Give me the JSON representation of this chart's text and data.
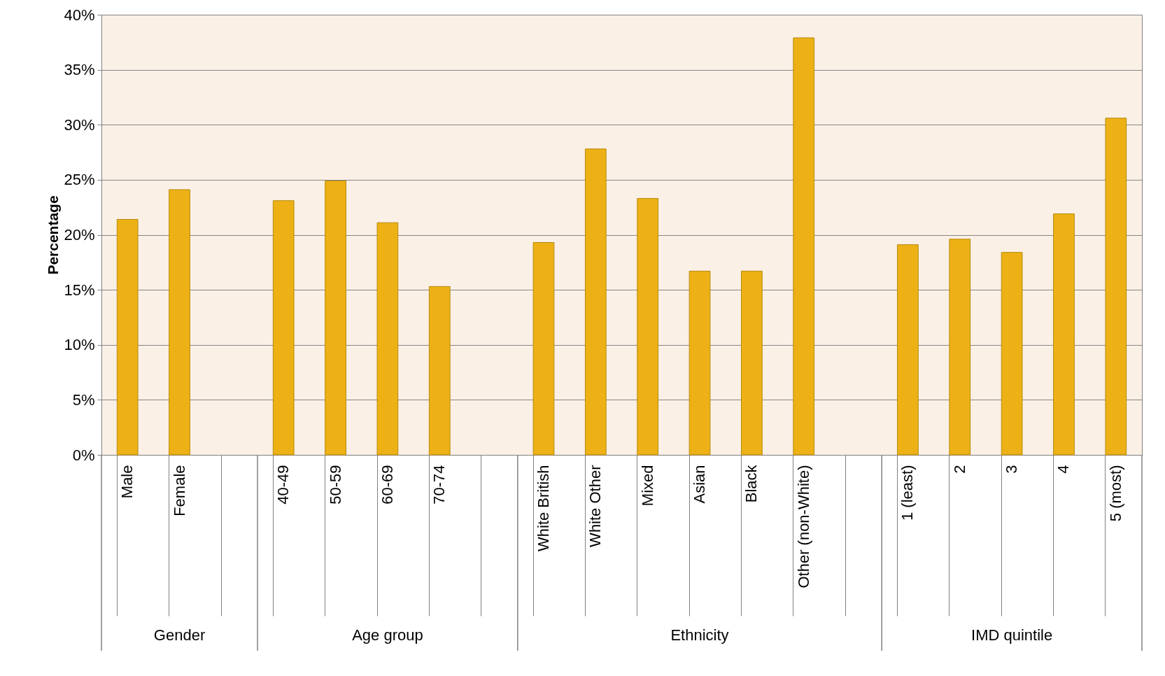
{
  "chart_data": {
    "type": "bar",
    "ylabel": "Percentage",
    "categories": [
      "Male",
      "Female",
      null,
      "40-49",
      "50-59",
      "60-69",
      "70-74",
      null,
      "White British",
      "White Other",
      "Mixed",
      "Asian",
      "Black",
      "Other (non-White)",
      null,
      "1 (least)",
      "2",
      "3",
      "4",
      "5 (most)"
    ],
    "values": [
      21.4,
      24.1,
      null,
      23.1,
      24.9,
      21.1,
      15.3,
      null,
      19.3,
      27.8,
      23.3,
      16.7,
      16.7,
      37.9,
      null,
      19.1,
      19.6,
      18.4,
      21.9,
      30.6
    ],
    "color": "#edb116",
    "ylim": [
      0,
      40
    ],
    "yticks": [
      {
        "value": 0,
        "label": "0%"
      },
      {
        "value": 5,
        "label": "5%"
      },
      {
        "value": 10,
        "label": "10%"
      },
      {
        "value": 15,
        "label": "15%"
      },
      {
        "value": 20,
        "label": "20%"
      },
      {
        "value": 25,
        "label": "25%"
      },
      {
        "value": 30,
        "label": "30%"
      },
      {
        "value": 35,
        "label": "35%"
      },
      {
        "value": 40,
        "label": "40%"
      }
    ],
    "grid": "y",
    "annotations": [
      "Gender",
      "Age group",
      "Ethnicity",
      "IMD quintile"
    ]
  }
}
